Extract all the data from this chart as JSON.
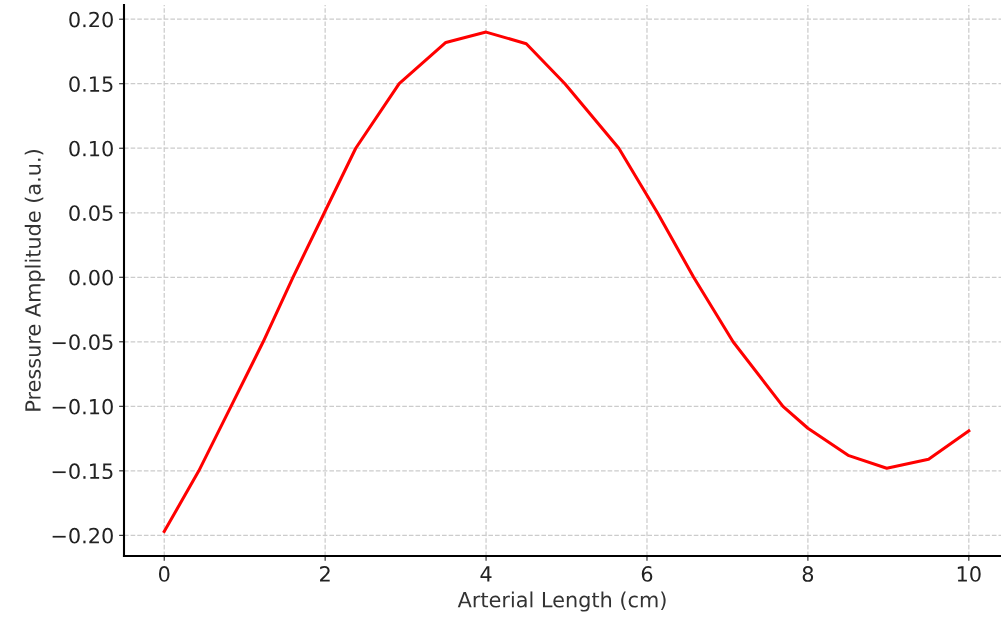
{
  "chart_data": {
    "type": "line",
    "xlabel": "Arterial Length (cm)",
    "ylabel": "Pressure Amplitude (a.u.)",
    "x": [
      0,
      0.43,
      0.83,
      1.23,
      1.6,
      1.99,
      2.38,
      2.92,
      3.5,
      4.0,
      4.5,
      4.98,
      5.65,
      6.13,
      6.58,
      7.07,
      7.69,
      8.0,
      8.5,
      8.98,
      9.5,
      10
    ],
    "series": [
      {
        "color": "#ff0000",
        "values": [
          -0.197,
          -0.15,
          -0.1,
          -0.05,
          0.0,
          0.05,
          0.1,
          0.15,
          0.182,
          0.19,
          0.181,
          0.15,
          0.1,
          0.05,
          0.0,
          -0.05,
          -0.1,
          -0.117,
          -0.138,
          -0.148,
          -0.141,
          -0.119
        ]
      }
    ],
    "xlim": [
      -0.5,
      10.4
    ],
    "ylim": [
      -0.216,
      0.211
    ],
    "xticks": [
      0,
      2,
      4,
      6,
      8,
      10
    ],
    "yticks": [
      {
        "value": -0.2,
        "label": "−0.20"
      },
      {
        "value": -0.15,
        "label": "−0.15"
      },
      {
        "value": -0.1,
        "label": "−0.10"
      },
      {
        "value": -0.05,
        "label": "−0.05"
      },
      {
        "value": 0,
        "label": "0.00"
      },
      {
        "value": 0.05,
        "label": "0.05"
      },
      {
        "value": 0.1,
        "label": "0.10"
      },
      {
        "value": 0.15,
        "label": "0.15"
      },
      {
        "value": 0.2,
        "label": "0.20"
      }
    ],
    "grid": true,
    "line_style": "solid"
  }
}
